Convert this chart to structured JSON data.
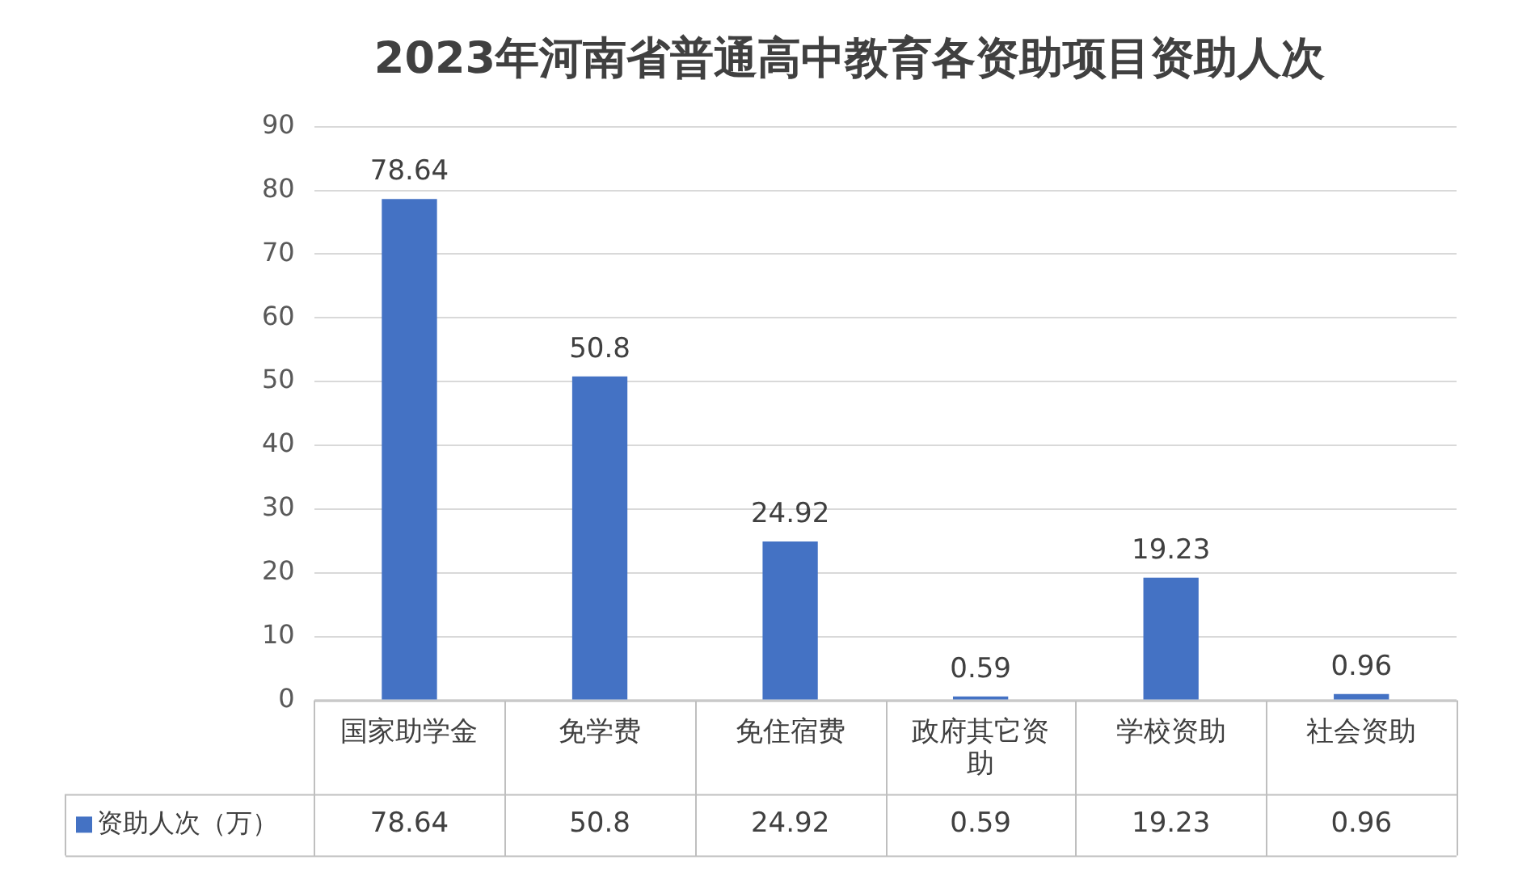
{
  "chart_data": {
    "type": "bar",
    "title": "2023年河南省普通高中教育各资助项目资助人次",
    "categories": [
      "国家助学金",
      "免学费",
      "免住宿费",
      "政府其它资助",
      "学校资助",
      "社会资助"
    ],
    "series": [
      {
        "name": "资助人次（万）",
        "color": "#4472c4",
        "values": [
          78.64,
          50.8,
          24.92,
          0.59,
          19.23,
          0.96
        ],
        "value_labels": [
          "78.64",
          "50.8",
          "24.92",
          "0.59",
          "19.23",
          "0.96"
        ]
      }
    ],
    "ylim": [
      0,
      90
    ],
    "yticks": [
      0,
      10,
      20,
      30,
      40,
      50,
      60,
      70,
      80,
      90
    ],
    "grid": "y",
    "data_labels": true,
    "legend": "bottom"
  }
}
